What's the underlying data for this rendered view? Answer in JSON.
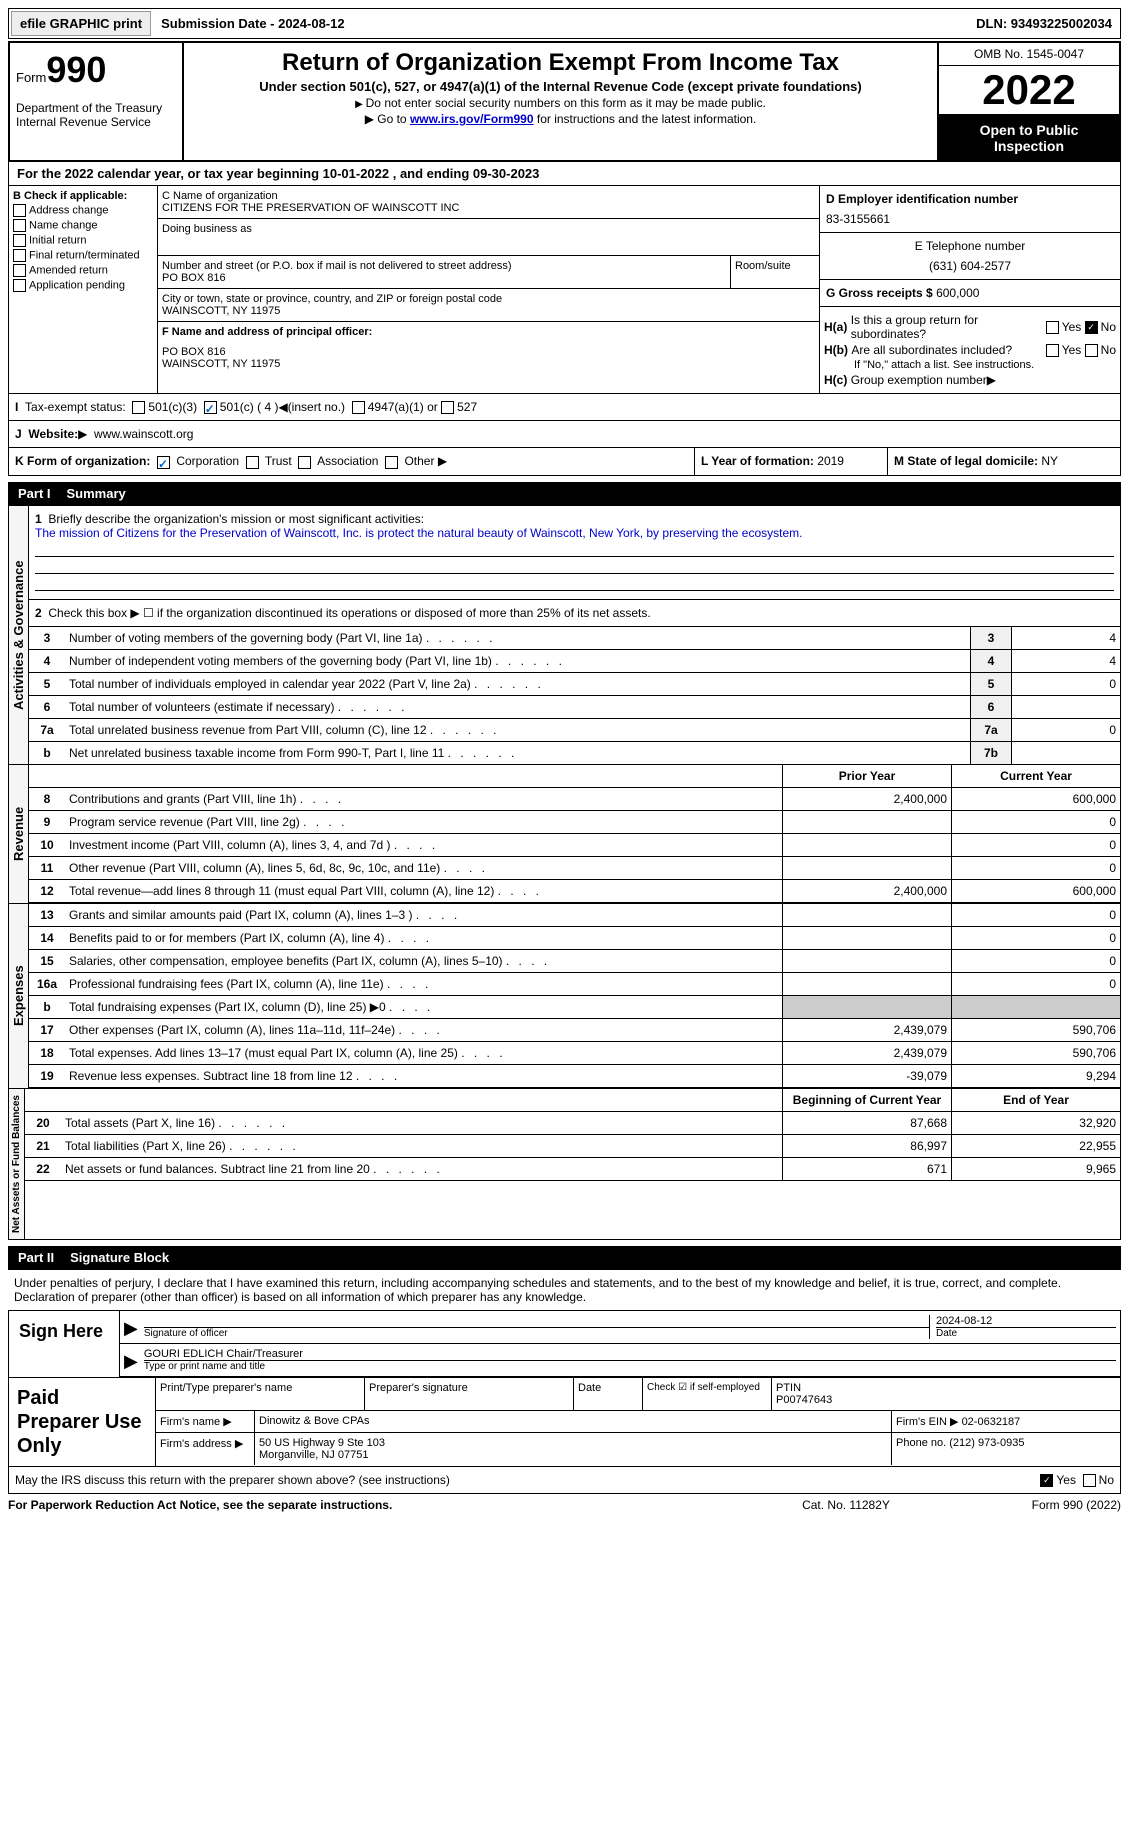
{
  "topbar": {
    "efile_btn": "efile GRAPHIC print",
    "submission": "Submission Date - 2024-08-12",
    "dln": "DLN: 93493225002034"
  },
  "header": {
    "form_label": "Form",
    "form_number": "990",
    "dept": "Department of the Treasury Internal Revenue Service",
    "main_title": "Return of Organization Exempt From Income Tax",
    "subtitle": "Under section 501(c), 527, or 4947(a)(1) of the Internal Revenue Code (except private foundations)",
    "instr1": "Do not enter social security numbers on this form as it may be made public.",
    "instr2_pre": "Go to ",
    "instr2_link": "www.irs.gov/Form990",
    "instr2_post": " for instructions and the latest information.",
    "omb": "OMB No. 1545-0047",
    "year": "2022",
    "inspection": "Open to Public Inspection"
  },
  "section_a": "For the 2022 calendar year, or tax year beginning 10-01-2022    , and ending 09-30-2023",
  "col_b": {
    "title": "B Check if applicable:",
    "items": [
      "Address change",
      "Name change",
      "Initial return",
      "Final return/terminated",
      "Amended return",
      "Application pending"
    ]
  },
  "org": {
    "name_label": "C Name of organization",
    "name": "CITIZENS FOR THE PRESERVATION OF WAINSCOTT INC",
    "dba_label": "Doing business as",
    "street_label": "Number and street (or P.O. box if mail is not delivered to street address)",
    "street": "PO BOX 816",
    "room_label": "Room/suite",
    "city_label": "City or town, state or province, country, and ZIP or foreign postal code",
    "city": "WAINSCOTT, NY  11975",
    "officer_label": "F Name and address of principal officer:",
    "officer_addr1": "PO BOX 816",
    "officer_addr2": "WAINSCOTT, NY  11975"
  },
  "right": {
    "ein_label": "D Employer identification number",
    "ein": "83-3155661",
    "phone_label": "E Telephone number",
    "phone": "(631) 604-2577",
    "receipts_label": "G Gross receipts $",
    "receipts": "600,000",
    "ha_label": "Is this a group return for subordinates?",
    "hb_label": "Are all subordinates included?",
    "hb_note": "If \"No,\" attach a list. See instructions.",
    "hc_label": "Group exemption number"
  },
  "tax_status": {
    "label": "Tax-exempt status:",
    "opt1": "501(c)(3)",
    "opt2": "501(c) ( 4 )",
    "opt2_note": "(insert no.)",
    "opt3": "4947(a)(1) or",
    "opt4": "527"
  },
  "website": {
    "label": "Website:",
    "value": "www.wainscott.org"
  },
  "form_org": {
    "label": "K Form of organization:",
    "corp": "Corporation",
    "trust": "Trust",
    "assoc": "Association",
    "other": "Other",
    "year_label": "L Year of formation:",
    "year": "2019",
    "state_label": "M State of legal domicile:",
    "state": "NY"
  },
  "part1": {
    "header_num": "Part I",
    "header_title": "Summary",
    "q1_label": "Briefly describe the organization's mission or most significant activities:",
    "q1_text": "The mission of Citizens for the Preservation of Wainscott, Inc. is protect the natural beauty of Wainscott, New York, by preserving the ecosystem.",
    "q2": "Check this box ▶ ☐ if the organization discontinued its operations or disposed of more than 25% of its net assets.",
    "rows": [
      {
        "n": "3",
        "label": "Number of voting members of the governing body (Part VI, line 1a)",
        "box": "3",
        "val": "4"
      },
      {
        "n": "4",
        "label": "Number of independent voting members of the governing body (Part VI, line 1b)",
        "box": "4",
        "val": "4"
      },
      {
        "n": "5",
        "label": "Total number of individuals employed in calendar year 2022 (Part V, line 2a)",
        "box": "5",
        "val": "0"
      },
      {
        "n": "6",
        "label": "Total number of volunteers (estimate if necessary)",
        "box": "6",
        "val": ""
      },
      {
        "n": "7a",
        "label": "Total unrelated business revenue from Part VIII, column (C), line 12",
        "box": "7a",
        "val": "0"
      },
      {
        "n": "b",
        "label": "Net unrelated business taxable income from Form 990-T, Part I, line 11",
        "box": "7b",
        "val": ""
      }
    ]
  },
  "revenue_header": {
    "prior": "Prior Year",
    "current": "Current Year"
  },
  "revenue": [
    {
      "n": "8",
      "label": "Contributions and grants (Part VIII, line 1h)",
      "prior": "2,400,000",
      "curr": "600,000"
    },
    {
      "n": "9",
      "label": "Program service revenue (Part VIII, line 2g)",
      "prior": "",
      "curr": "0"
    },
    {
      "n": "10",
      "label": "Investment income (Part VIII, column (A), lines 3, 4, and 7d )",
      "prior": "",
      "curr": "0"
    },
    {
      "n": "11",
      "label": "Other revenue (Part VIII, column (A), lines 5, 6d, 8c, 9c, 10c, and 11e)",
      "prior": "",
      "curr": "0"
    },
    {
      "n": "12",
      "label": "Total revenue—add lines 8 through 11 (must equal Part VIII, column (A), line 12)",
      "prior": "2,400,000",
      "curr": "600,000"
    }
  ],
  "expenses": [
    {
      "n": "13",
      "label": "Grants and similar amounts paid (Part IX, column (A), lines 1–3 )",
      "prior": "",
      "curr": "0"
    },
    {
      "n": "14",
      "label": "Benefits paid to or for members (Part IX, column (A), line 4)",
      "prior": "",
      "curr": "0"
    },
    {
      "n": "15",
      "label": "Salaries, other compensation, employee benefits (Part IX, column (A), lines 5–10)",
      "prior": "",
      "curr": "0"
    },
    {
      "n": "16a",
      "label": "Professional fundraising fees (Part IX, column (A), line 11e)",
      "prior": "",
      "curr": "0"
    },
    {
      "n": "b",
      "label": "Total fundraising expenses (Part IX, column (D), line 25) ▶0",
      "prior": "GREY",
      "curr": "GREY"
    },
    {
      "n": "17",
      "label": "Other expenses (Part IX, column (A), lines 11a–11d, 11f–24e)",
      "prior": "2,439,079",
      "curr": "590,706"
    },
    {
      "n": "18",
      "label": "Total expenses. Add lines 13–17 (must equal Part IX, column (A), line 25)",
      "prior": "2,439,079",
      "curr": "590,706"
    },
    {
      "n": "19",
      "label": "Revenue less expenses. Subtract line 18 from line 12",
      "prior": "-39,079",
      "curr": "9,294"
    }
  ],
  "netassets_header": {
    "begin": "Beginning of Current Year",
    "end": "End of Year"
  },
  "netassets": [
    {
      "n": "20",
      "label": "Total assets (Part X, line 16)",
      "prior": "87,668",
      "curr": "32,920"
    },
    {
      "n": "21",
      "label": "Total liabilities (Part X, line 26)",
      "prior": "86,997",
      "curr": "22,955"
    },
    {
      "n": "22",
      "label": "Net assets or fund balances. Subtract line 21 from line 20",
      "prior": "671",
      "curr": "9,965"
    }
  ],
  "part2": {
    "header_num": "Part II",
    "header_title": "Signature Block",
    "penalty": "Under penalties of perjury, I declare that I have examined this return, including accompanying schedules and statements, and to the best of my knowledge and belief, it is true, correct, and complete. Declaration of preparer (other than officer) is based on all information of which preparer has any knowledge."
  },
  "sign": {
    "label": "Sign Here",
    "sig_label": "Signature of officer",
    "date": "2024-08-12",
    "date_label": "Date",
    "name": "GOURI EDLICH  Chair/Treasurer",
    "name_label": "Type or print name and title"
  },
  "preparer": {
    "label": "Paid Preparer Use Only",
    "name_label": "Print/Type preparer's name",
    "sig_label": "Preparer's signature",
    "date_label": "Date",
    "check_label": "Check ☑ if self-employed",
    "ptin_label": "PTIN",
    "ptin": "P00747643",
    "firm_name_label": "Firm's name   ▶",
    "firm_name": "Dinowitz & Bove CPAs",
    "firm_ein_label": "Firm's EIN ▶",
    "firm_ein": "02-0632187",
    "firm_addr_label": "Firm's address ▶",
    "firm_addr1": "50 US Highway 9 Ste 103",
    "firm_addr2": "Morganville, NJ  07751",
    "phone_label": "Phone no.",
    "phone": "(212) 973-0935"
  },
  "discuss": "May the IRS discuss this return with the preparer shown above? (see instructions)",
  "footer": {
    "left": "For Paperwork Reduction Act Notice, see the separate instructions.",
    "mid": "Cat. No. 11282Y",
    "right": "Form 990 (2022)"
  },
  "vert_labels": {
    "activities": "Activities & Governance",
    "revenue": "Revenue",
    "expenses": "Expenses",
    "netassets": "Net Assets or Fund Balances"
  }
}
